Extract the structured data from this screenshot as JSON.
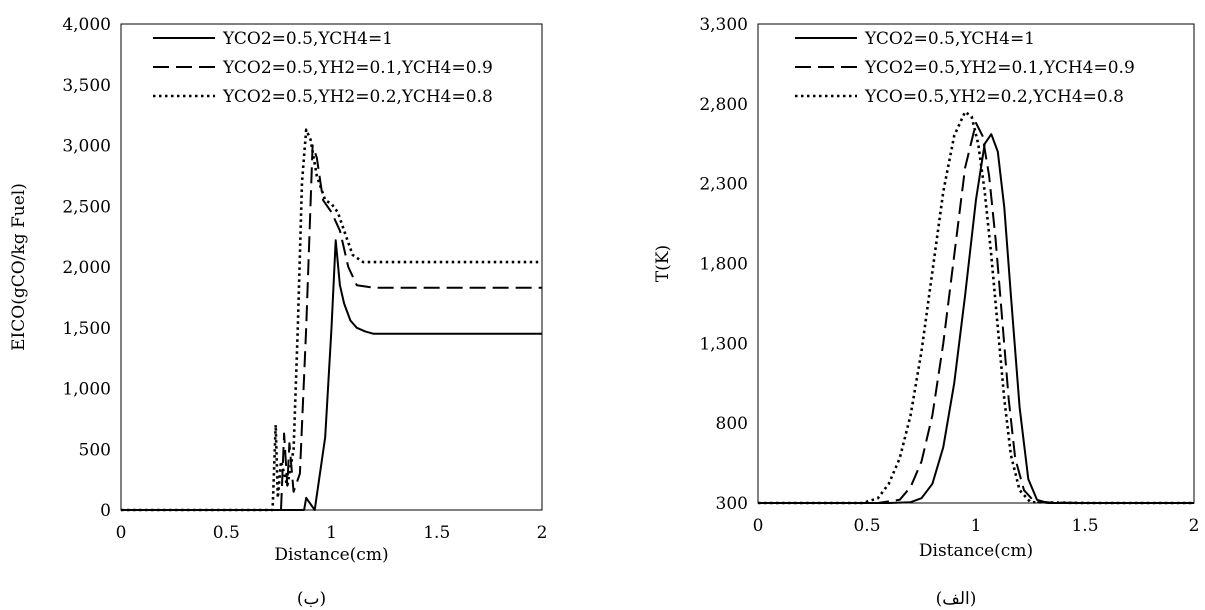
{
  "chart_data": [
    {
      "type": "line",
      "caption": "(ب)",
      "xlabel": "Distance(cm)",
      "ylabel": "EICO(gCO/kg Fuel)",
      "xlim": [
        0,
        2
      ],
      "ylim": [
        0,
        4000
      ],
      "x_ticks": [
        "0",
        "0.5",
        "1",
        "1.5",
        "2"
      ],
      "y_ticks": [
        "0",
        "500",
        "1,000",
        "1,500",
        "2,000",
        "2,500",
        "3,000",
        "3,500",
        "4,000"
      ],
      "legend_position": "top",
      "grid": false,
      "series": [
        {
          "name": "YCO2=0.5,YCH4=1",
          "style": "solid",
          "x": [
            0,
            0.85,
            0.87,
            0.88,
            0.92,
            0.97,
            1.0,
            1.02,
            1.04,
            1.06,
            1.09,
            1.12,
            1.16,
            1.2,
            1.3,
            1.5,
            2.0
          ],
          "y": [
            0,
            0,
            0,
            100,
            0,
            600,
            1500,
            2220,
            1850,
            1700,
            1560,
            1500,
            1470,
            1450,
            1450,
            1450,
            1450
          ]
        },
        {
          "name": "YCO2=0.5,YH2=0.1,YCH4=0.9",
          "style": "dashed",
          "x": [
            0,
            0.76,
            0.775,
            0.79,
            0.8,
            0.82,
            0.85,
            0.88,
            0.91,
            0.93,
            0.96,
            1.0,
            1.04,
            1.08,
            1.12,
            1.2,
            1.5,
            2.0
          ],
          "y": [
            0,
            0,
            630,
            200,
            550,
            150,
            300,
            1500,
            3000,
            2900,
            2550,
            2450,
            2300,
            2000,
            1850,
            1830,
            1830,
            1830
          ]
        },
        {
          "name": "YCO2=0.5,YH2=0.2,YCH4=0.8",
          "style": "dotted",
          "x": [
            0,
            0.72,
            0.735,
            0.745,
            0.76,
            0.79,
            0.82,
            0.84,
            0.86,
            0.88,
            0.9,
            0.93,
            0.97,
            1.0,
            1.03,
            1.06,
            1.1,
            1.15,
            1.3,
            1.6,
            2.0
          ],
          "y": [
            0,
            0,
            700,
            100,
            400,
            200,
            500,
            1500,
            2700,
            3130,
            3050,
            2750,
            2550,
            2520,
            2450,
            2300,
            2100,
            2040,
            2040,
            2040,
            2040
          ]
        }
      ]
    },
    {
      "type": "line",
      "caption": "(الف)",
      "xlabel": "Distance(cm)",
      "ylabel": "T(K)",
      "xlim": [
        0,
        2
      ],
      "ylim": [
        300,
        3300
      ],
      "x_ticks": [
        "0",
        "0.5",
        "1",
        "1.5",
        "2"
      ],
      "y_ticks": [
        "300",
        "800",
        "1,300",
        "1,800",
        "2,300",
        "2,800",
        "3,300"
      ],
      "legend_position": "top",
      "grid": false,
      "series": [
        {
          "name": "YCO2=0.5,YCH4=1",
          "style": "solid",
          "x": [
            0,
            0.6,
            0.7,
            0.75,
            0.8,
            0.85,
            0.9,
            0.95,
            1.0,
            1.04,
            1.07,
            1.1,
            1.13,
            1.16,
            1.2,
            1.24,
            1.28,
            1.33,
            1.5,
            2.0
          ],
          "y": [
            300,
            300,
            305,
            330,
            420,
            650,
            1050,
            1600,
            2200,
            2550,
            2610,
            2500,
            2150,
            1600,
            900,
            450,
            320,
            300,
            300,
            300
          ]
        },
        {
          "name": "YCO2=0.5,YH2=0.1,YCH4=0.9",
          "style": "dashed",
          "x": [
            0,
            0.55,
            0.65,
            0.7,
            0.75,
            0.8,
            0.85,
            0.9,
            0.95,
            1.0,
            1.03,
            1.06,
            1.09,
            1.12,
            1.15,
            1.18,
            1.22,
            1.27,
            1.5,
            2.0
          ],
          "y": [
            300,
            300,
            320,
            400,
            560,
            850,
            1300,
            1850,
            2400,
            2680,
            2600,
            2350,
            1950,
            1450,
            950,
            580,
            380,
            305,
            300,
            300
          ]
        },
        {
          "name": "YCO=0.5,YH2=0.2,YCH4=0.8",
          "style": "dotted",
          "x": [
            0,
            0.48,
            0.55,
            0.6,
            0.65,
            0.7,
            0.75,
            0.8,
            0.85,
            0.9,
            0.95,
            0.98,
            1.01,
            1.04,
            1.07,
            1.1,
            1.13,
            1.16,
            1.2,
            1.25,
            1.5,
            2.0
          ],
          "y": [
            300,
            300,
            330,
            420,
            580,
            850,
            1250,
            1750,
            2250,
            2600,
            2750,
            2720,
            2550,
            2250,
            1850,
            1400,
            950,
            600,
            380,
            305,
            300,
            300
          ]
        }
      ]
    }
  ]
}
